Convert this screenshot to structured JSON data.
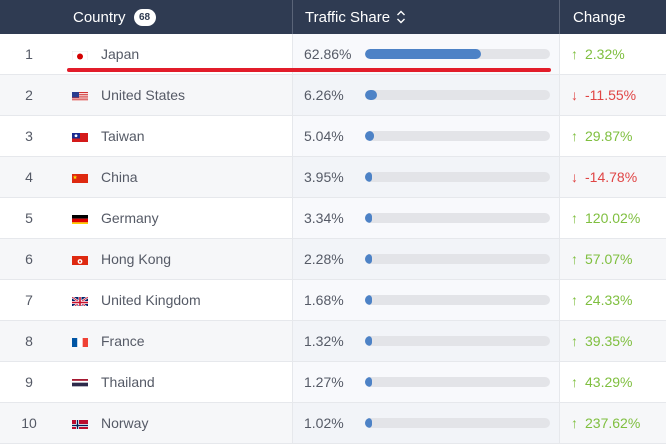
{
  "header": {
    "country_label": "Country",
    "country_count": "68",
    "share_label": "Traffic Share",
    "change_label": "Change",
    "sort_icon": "sort-updown-icon"
  },
  "colors": {
    "header_bg": "#2f3b52",
    "bar_fill": "#4d82c6",
    "bar_track": "#e3e4e8",
    "up": "#7fbf3f",
    "down": "#e04545",
    "highlight": "#e21c2a"
  },
  "rows": [
    {
      "rank": "1",
      "country": "Japan",
      "flag": "japan-flag-icon",
      "share": "62.86%",
      "share_value": 62.86,
      "change": "2.32%",
      "direction": "up"
    },
    {
      "rank": "2",
      "country": "United States",
      "flag": "usa-flag-icon",
      "share": "6.26%",
      "share_value": 6.26,
      "change": "-11.55%",
      "direction": "down"
    },
    {
      "rank": "3",
      "country": "Taiwan",
      "flag": "taiwan-flag-icon",
      "share": "5.04%",
      "share_value": 5.04,
      "change": "29.87%",
      "direction": "up"
    },
    {
      "rank": "4",
      "country": "China",
      "flag": "china-flag-icon",
      "share": "3.95%",
      "share_value": 3.95,
      "change": "-14.78%",
      "direction": "down"
    },
    {
      "rank": "5",
      "country": "Germany",
      "flag": "germany-flag-icon",
      "share": "3.34%",
      "share_value": 3.34,
      "change": "120.02%",
      "direction": "up"
    },
    {
      "rank": "6",
      "country": "Hong Kong",
      "flag": "hong-kong-flag-icon",
      "share": "2.28%",
      "share_value": 2.28,
      "change": "57.07%",
      "direction": "up"
    },
    {
      "rank": "7",
      "country": "United Kingdom",
      "flag": "uk-flag-icon",
      "share": "1.68%",
      "share_value": 1.68,
      "change": "24.33%",
      "direction": "up"
    },
    {
      "rank": "8",
      "country": "France",
      "flag": "france-flag-icon",
      "share": "1.32%",
      "share_value": 1.32,
      "change": "39.35%",
      "direction": "up"
    },
    {
      "rank": "9",
      "country": "Thailand",
      "flag": "thailand-flag-icon",
      "share": "1.27%",
      "share_value": 1.27,
      "change": "43.29%",
      "direction": "up"
    },
    {
      "rank": "10",
      "country": "Norway",
      "flag": "norway-flag-icon",
      "share": "1.02%",
      "share_value": 1.02,
      "change": "237.62%",
      "direction": "up"
    }
  ],
  "arrows": {
    "up": "↑",
    "down": "↓"
  }
}
